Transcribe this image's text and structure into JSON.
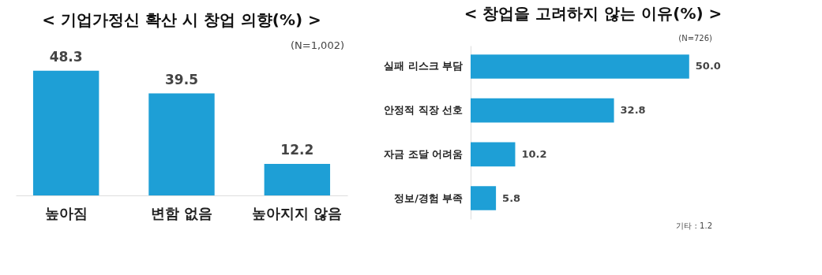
{
  "chart_data": [
    {
      "type": "bar",
      "title": "< 기업가정신 확산 시 창업 의향(%) >",
      "categories": [
        "높아짐",
        "변함 없음",
        "높아지지 않음"
      ],
      "values": [
        48.3,
        39.5,
        12.2
      ],
      "value_labels": [
        "48.3",
        "39.5",
        "12.2"
      ],
      "color": "#1e9fd6",
      "data_labels": true,
      "annotations": [
        "(N=1,002)"
      ]
    },
    {
      "type": "bar",
      "orientation": "horizontal",
      "title": "< 창업을 고려하지 않는 이유(%) >",
      "categories": [
        "실패 리스크 부담",
        "안정적 직장 선호",
        "자금 조달 어려움",
        "정보/경험 부족"
      ],
      "values": [
        50.0,
        32.8,
        10.2,
        5.8
      ],
      "value_labels": [
        "50.0",
        "32.8",
        "10.2",
        "5.8"
      ],
      "color": "#1e9fd6",
      "data_labels": true,
      "annotations": [
        "(N=726)",
        "기타 : 1.2"
      ]
    }
  ]
}
